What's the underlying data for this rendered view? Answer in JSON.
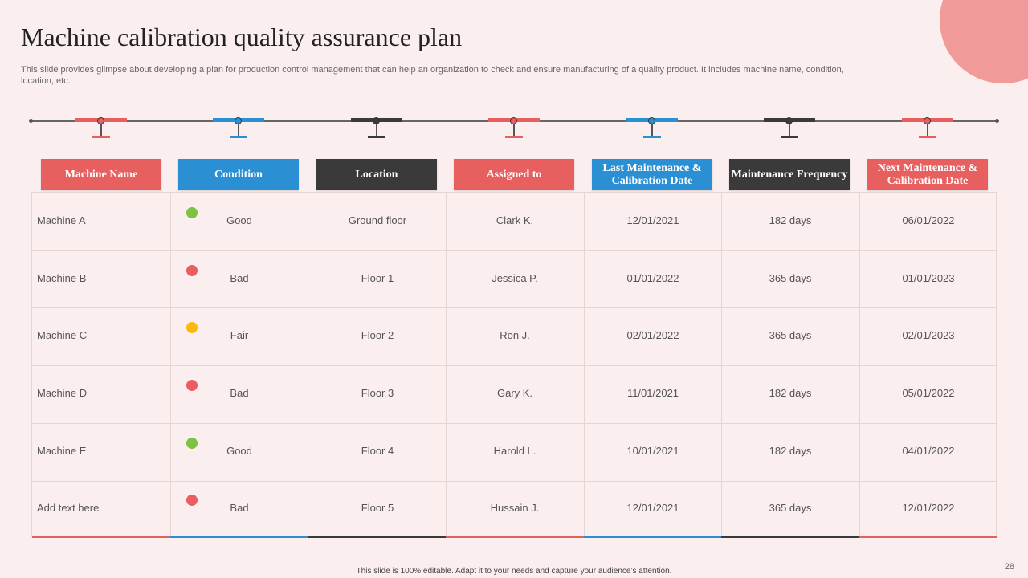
{
  "slide": {
    "title": "Machine calibration quality assurance plan",
    "subtitle": "This slide provides glimpse about developing a plan for production control management that can help an organization to check and ensure manufacturing of a quality product. It includes machine name, condition, location, etc.",
    "footer": "This slide is 100% editable.  Adapt it to your needs and capture your audience’s attention.",
    "page_number": "28"
  },
  "colors": {
    "red": "#e85f5f",
    "blue": "#2b8fd3",
    "dark": "#3a3a3a",
    "good": "#7cc243",
    "bad": "#ea5e62",
    "fair": "#fbb90f"
  },
  "headers": [
    {
      "label": "Machine Name",
      "color": "red"
    },
    {
      "label": "Condition",
      "color": "blue"
    },
    {
      "label": "Location",
      "color": "dark"
    },
    {
      "label": "Assigned to",
      "color": "red"
    },
    {
      "label": "Last Maintenance & Calibration Date",
      "color": "blue"
    },
    {
      "label": "Maintenance Frequency",
      "color": "dark"
    },
    {
      "label": "Next Maintenance & Calibration Date",
      "color": "red"
    }
  ],
  "rows": [
    {
      "machine": "Machine A",
      "status": "good",
      "condition": "Good",
      "location": "Ground floor",
      "assigned": "Clark K.",
      "last": "12/01/2021",
      "frequency": "182 days",
      "next": "06/01/2022"
    },
    {
      "machine": "Machine B",
      "status": "bad",
      "condition": "Bad",
      "location": "Floor 1",
      "assigned": "Jessica P.",
      "last": "01/01/2022",
      "frequency": "365 days",
      "next": "01/01/2023"
    },
    {
      "machine": "Machine C",
      "status": "fair",
      "condition": "Fair",
      "location": "Floor 2",
      "assigned": "Ron J.",
      "last": "02/01/2022",
      "frequency": "365 days",
      "next": "02/01/2023"
    },
    {
      "machine": "Machine D",
      "status": "bad",
      "condition": "Bad",
      "location": "Floor 3",
      "assigned": "Gary K.",
      "last": "11/01/2021",
      "frequency": "182 days",
      "next": "05/01/2022"
    },
    {
      "machine": "Machine E",
      "status": "good",
      "condition": "Good",
      "location": "Floor 4",
      "assigned": "Harold  L.",
      "last": "10/01/2021",
      "frequency": "182 days",
      "next": "04/01/2022"
    },
    {
      "machine": "Add text here",
      "status": "bad",
      "condition": "Bad",
      "location": "Floor 5",
      "assigned": "Hussain J.",
      "last": "12/01/2021",
      "frequency": "365 days",
      "next": "12/01/2022"
    }
  ]
}
